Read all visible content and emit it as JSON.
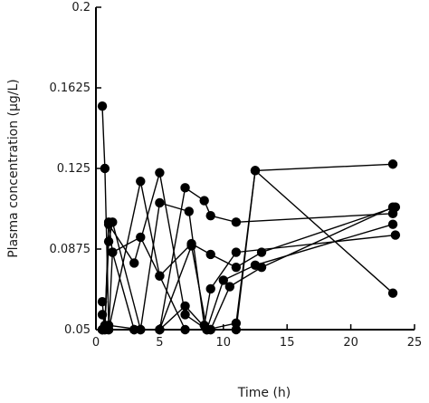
{
  "chart_data": {
    "type": "line",
    "title": "",
    "xlabel": "Time (h)",
    "ylabel": "Plasma concentration (µg/L)",
    "xlim": [
      0,
      25
    ],
    "ylim": [
      0.05,
      0.2
    ],
    "x_ticks": [
      0,
      5,
      10,
      15,
      20,
      25
    ],
    "x_tick_labels": [
      "0",
      "5",
      "10",
      "15",
      "20",
      "25"
    ],
    "y_ticks": [
      0.05,
      0.0875,
      0.125,
      0.1625,
      0.2
    ],
    "y_tick_labels": [
      "0.05",
      "0.0875",
      "0.125",
      "0.1625",
      "0.2"
    ],
    "grid": false,
    "legend": "none",
    "marker": "filled-circle",
    "color": "#000000",
    "series": [
      {
        "x": [
          0.5,
          0.7,
          1.0,
          3.5,
          5.0,
          7.5,
          8.7,
          9.0,
          11.0,
          12.5,
          23.3
        ],
        "y": [
          0.154,
          0.125,
          0.052,
          0.05,
          0.05,
          0.089,
          0.05,
          0.05,
          0.05,
          0.124,
          0.067
        ]
      },
      {
        "x": [
          0.5,
          0.7,
          1.0,
          3.0,
          5.0,
          7.0,
          8.7,
          11.0,
          12.5,
          23.3
        ],
        "y": [
          0.05,
          0.05,
          0.099,
          0.081,
          0.123,
          0.057,
          0.05,
          0.053,
          0.124,
          0.127
        ]
      },
      {
        "x": [
          0.5,
          0.7,
          1.0,
          1.3,
          3.0,
          5.0,
          7.0,
          8.5,
          9.0,
          11.0,
          23.3
        ],
        "y": [
          0.057,
          0.052,
          0.1,
          0.086,
          0.05,
          0.05,
          0.116,
          0.11,
          0.103,
          0.1,
          0.104
        ]
      },
      {
        "x": [
          0.5,
          0.7,
          1.0,
          1.3,
          3.5,
          5.0,
          7.3,
          8.5,
          9.0,
          11.0,
          23.5
        ],
        "y": [
          0.063,
          0.05,
          0.091,
          0.1,
          0.05,
          0.109,
          0.105,
          0.052,
          0.069,
          0.086,
          0.094
        ]
      },
      {
        "x": [
          0.5,
          1.0,
          1.3,
          3.5,
          5.0,
          7.5,
          9.0,
          11.0,
          13.0,
          23.5
        ],
        "y": [
          0.05,
          0.05,
          0.086,
          0.093,
          0.075,
          0.09,
          0.085,
          0.079,
          0.086,
          0.107
        ]
      },
      {
        "x": [
          0.5,
          1.0,
          3.5,
          5.0,
          7.0,
          9.0,
          10.5,
          13.0,
          23.3
        ],
        "y": [
          0.05,
          0.05,
          0.119,
          0.075,
          0.05,
          0.05,
          0.07,
          0.079,
          0.107
        ]
      },
      {
        "x": [
          0.5,
          3.0,
          5.0,
          7.0,
          8.7,
          10.0,
          12.5,
          23.3
        ],
        "y": [
          0.05,
          0.05,
          0.05,
          0.061,
          0.05,
          0.073,
          0.08,
          0.099
        ]
      }
    ]
  }
}
